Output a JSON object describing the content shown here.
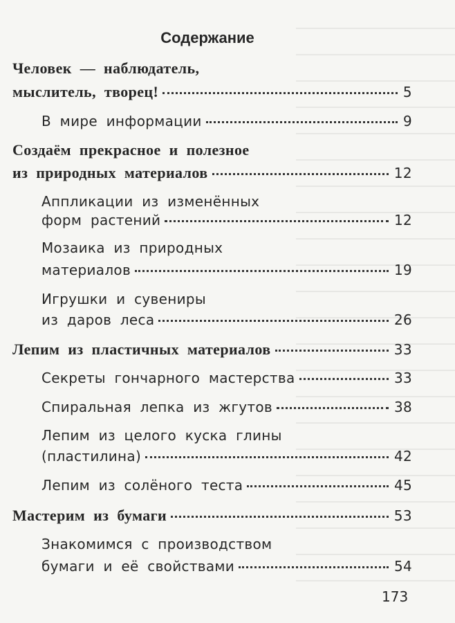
{
  "title": "Содержание",
  "entries": [
    {
      "lines": [
        "Человек — наблюдатель,",
        "мыслитель, творец!"
      ],
      "page": "5"
    },
    {
      "lines": [
        "В мире информации"
      ],
      "page": "9"
    },
    {
      "lines": [
        "Создаём прекрасное и полезное",
        "из природных материалов"
      ],
      "page": "12"
    },
    {
      "lines": [
        "Аппликации из изменённых",
        "форм растений"
      ],
      "page": "12"
    },
    {
      "lines": [
        "Мозаика из природных",
        "материалов"
      ],
      "page": "19"
    },
    {
      "lines": [
        "Игрушки и сувениры",
        "из даров леса"
      ],
      "page": "26"
    },
    {
      "lines": [
        "Лепим из пластичных материалов"
      ],
      "page": "33"
    },
    {
      "lines": [
        "Секреты гончарного мастерства"
      ],
      "page": "33"
    },
    {
      "lines": [
        "Спиральная лепка из жгутов"
      ],
      "page": "38"
    },
    {
      "lines": [
        "Лепим из целого куска глины",
        "(пластилина)"
      ],
      "page": "42"
    },
    {
      "lines": [
        "Лепим из солёного теста"
      ],
      "page": "45"
    },
    {
      "lines": [
        "Мастерим из бумаги"
      ],
      "page": "53"
    },
    {
      "lines": [
        "Знакомимся с производством",
        "бумаги и её свойствами"
      ],
      "page": "54"
    }
  ],
  "page_number": "173"
}
